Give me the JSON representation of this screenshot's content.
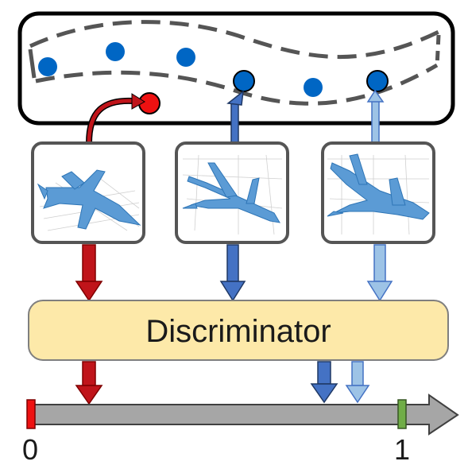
{
  "latent_space": {
    "manifold_color": "#555555",
    "sample_color": "#0066c4",
    "outlier_color": "#ee1111"
  },
  "samples": [
    {
      "id": "fake-fighter",
      "arrow_color": "#c0141a",
      "kind": "off-manifold",
      "depicts": "fighter-jet-render"
    },
    {
      "id": "airliner-a",
      "arrow_color": "#4472c4",
      "kind": "on-manifold",
      "depicts": "airliner-render"
    },
    {
      "id": "airliner-b",
      "arrow_color": "#9dc3e6",
      "kind": "on-manifold",
      "depicts": "airliner-render"
    }
  ],
  "discriminator": {
    "label": "Discriminator",
    "fill": "#fde9a9",
    "stroke": "#7f7f7f"
  },
  "score_axis": {
    "min_label": "0",
    "max_label": "1",
    "min_marker_color": "#ee1111",
    "max_marker_color": "#70ad47",
    "bar_color": "#a6a6a6",
    "scores": [
      0.16,
      0.79,
      0.88
    ]
  },
  "icons": {
    "plane_thumbnail": "airplane-icon"
  }
}
